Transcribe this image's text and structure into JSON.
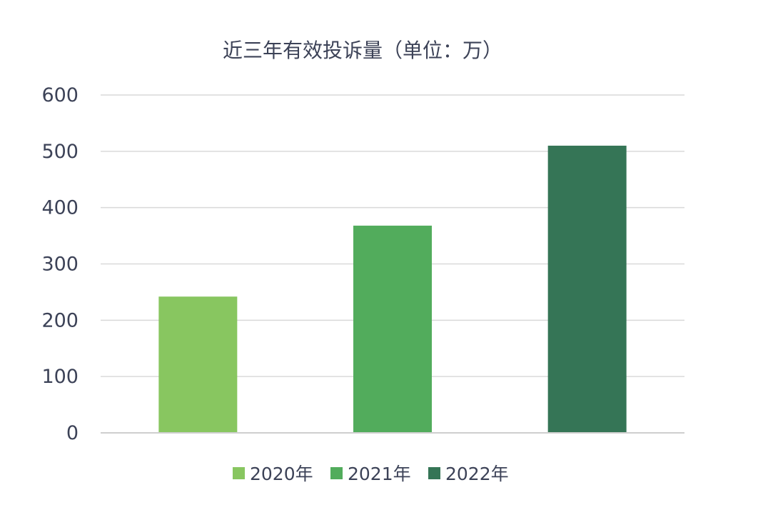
{
  "chart_data": {
    "type": "bar",
    "title": "近三年有效投诉量（单位：万）",
    "categories": [
      "2020年",
      "2021年",
      "2022年"
    ],
    "values": [
      242,
      368,
      510
    ],
    "colors": [
      "#88c660",
      "#52ac5c",
      "#357556"
    ],
    "ylim": [
      0,
      600
    ],
    "yticks": [
      0,
      100,
      200,
      300,
      400,
      500,
      600
    ],
    "grid": true,
    "legend": {
      "placement": "bottom",
      "entries": [
        "2020年",
        "2021年",
        "2022年"
      ]
    }
  }
}
